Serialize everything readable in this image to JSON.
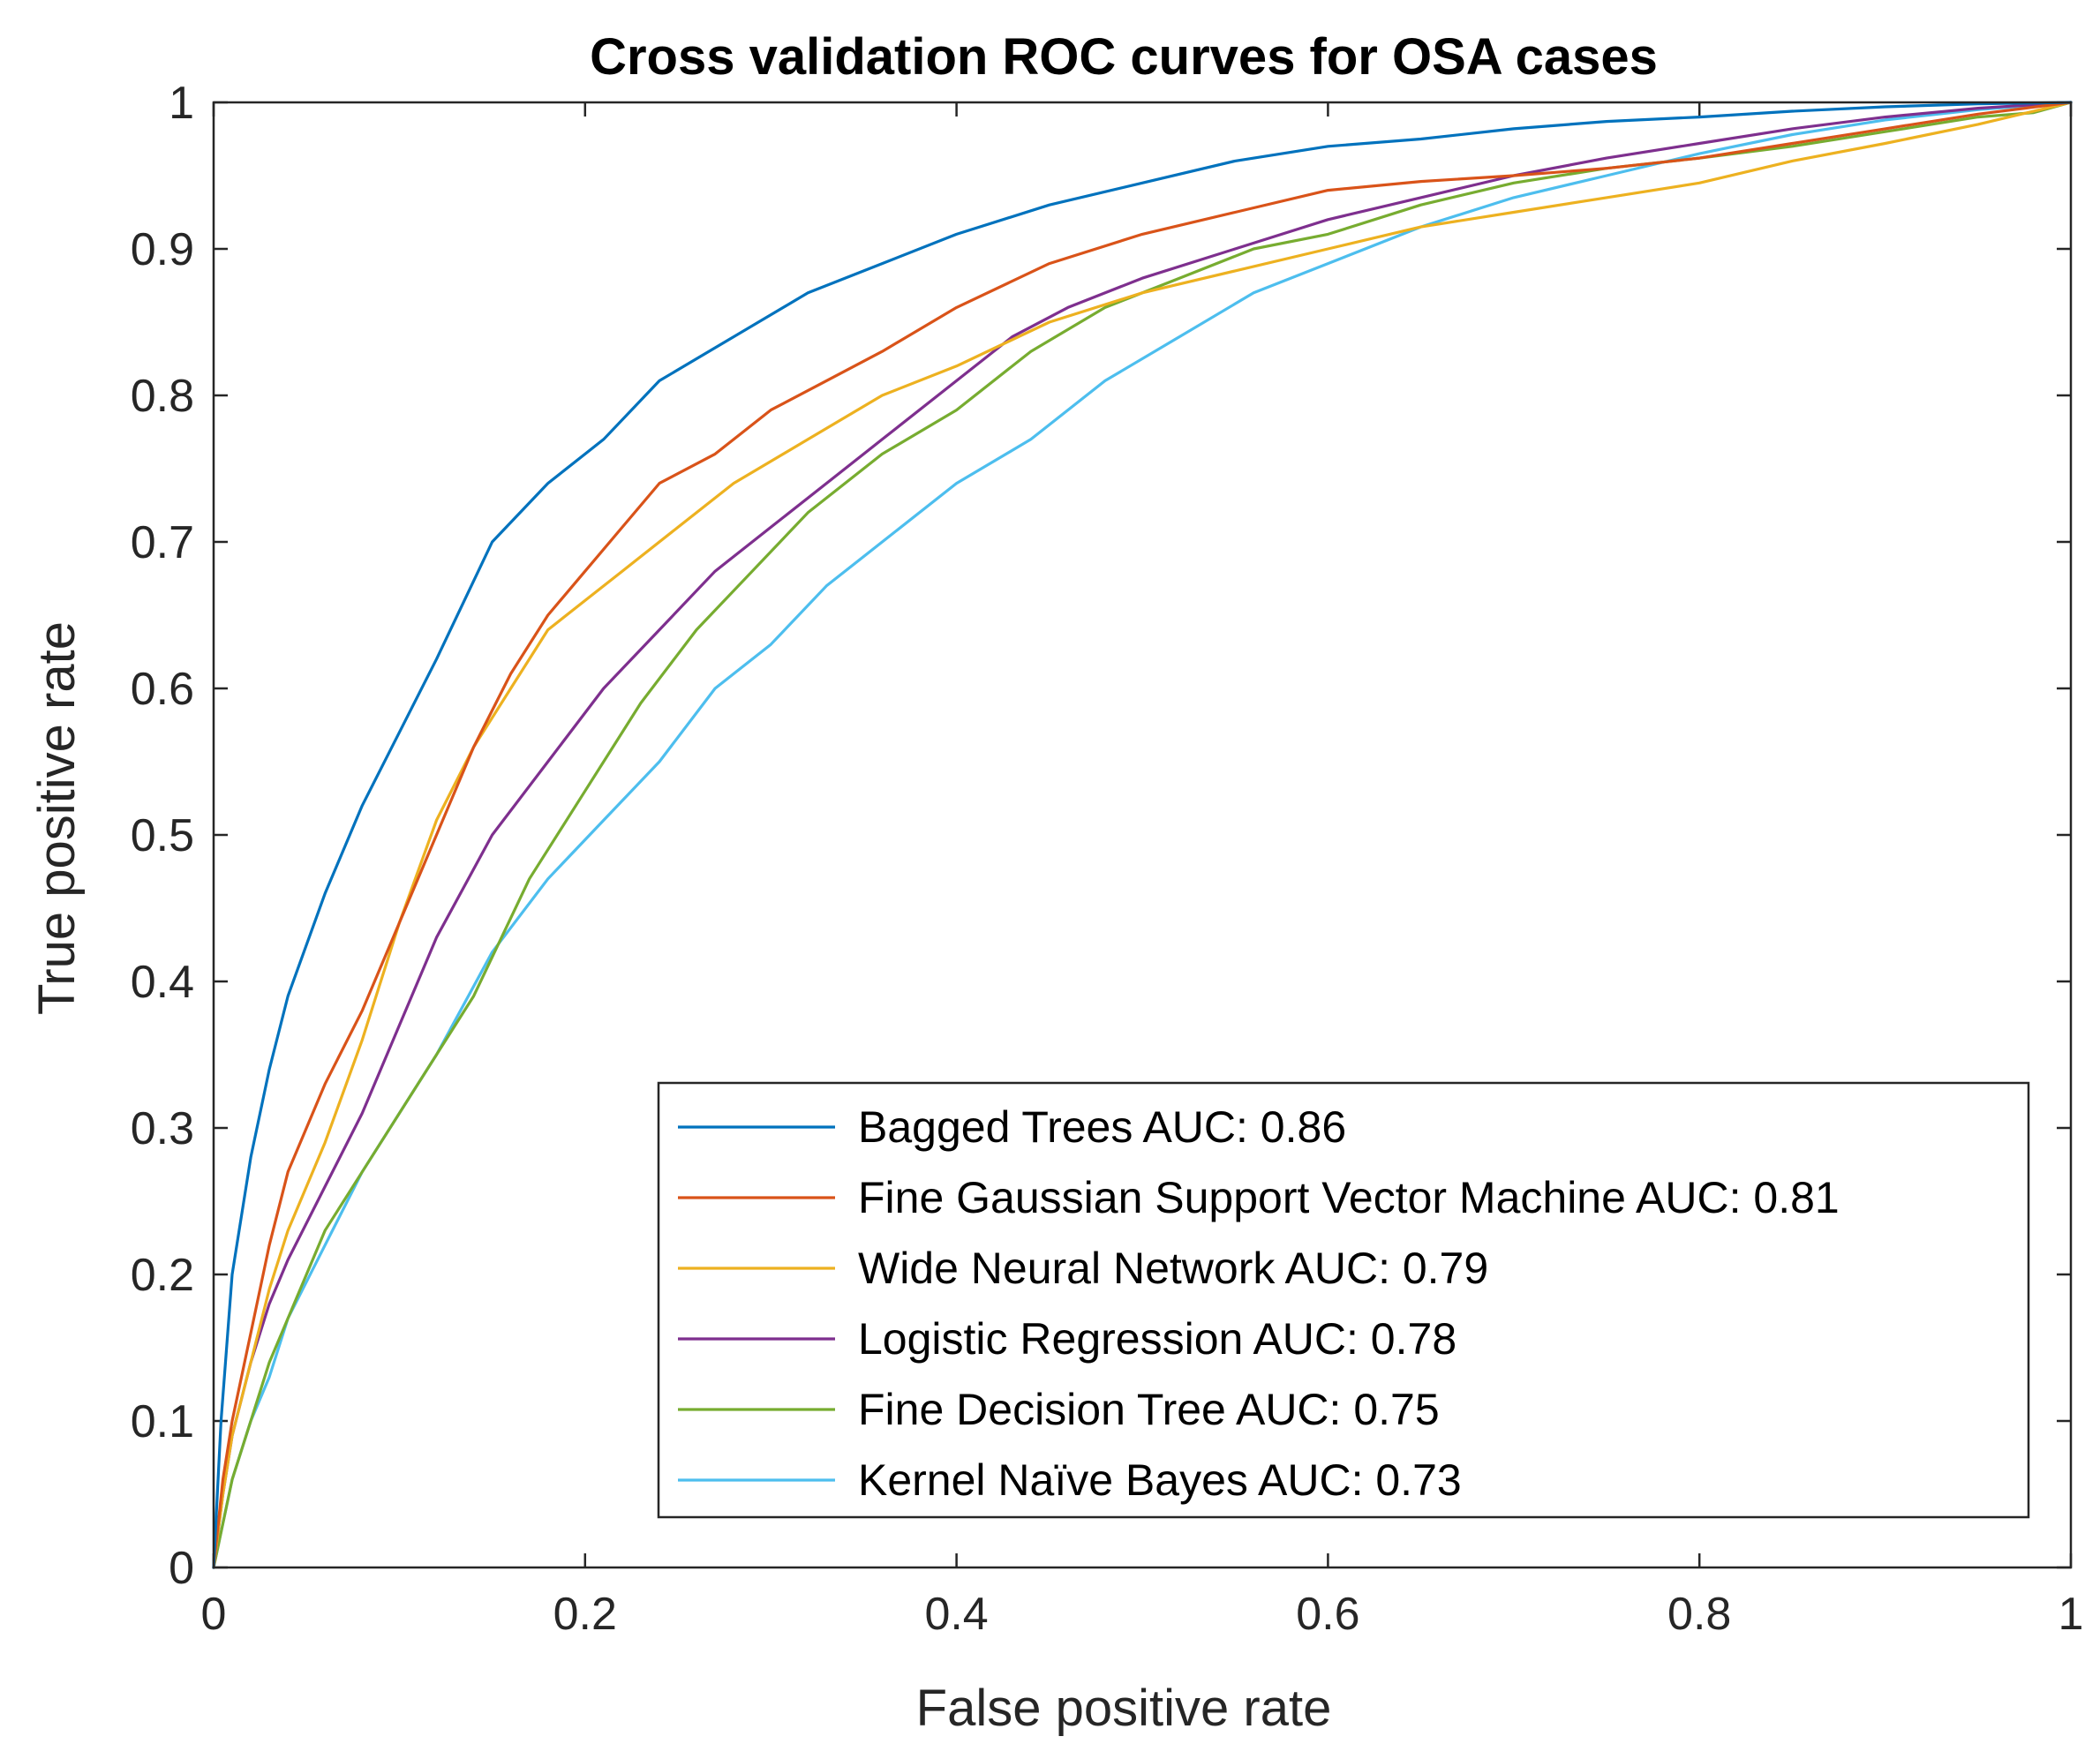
{
  "chart_data": {
    "type": "line",
    "title": "Cross validation ROC curves for OSA cases",
    "xlabel": "False positive rate",
    "ylabel": "True positive rate",
    "xlim": [
      0,
      1
    ],
    "ylim": [
      0,
      1
    ],
    "xticks": [
      "0",
      "0.2",
      "0.4",
      "0.6",
      "0.8",
      "1"
    ],
    "yticks": [
      "0",
      "0.1",
      "0.2",
      "0.3",
      "0.4",
      "0.5",
      "0.6",
      "0.7",
      "0.8",
      "0.9",
      "1"
    ],
    "grid": false,
    "legend_position": "bottom-right",
    "series": [
      {
        "name": "Bagged Trees AUC: 0.86",
        "color": "#0072BD",
        "x": [
          0,
          0.004,
          0.01,
          0.02,
          0.03,
          0.04,
          0.06,
          0.08,
          0.1,
          0.12,
          0.15,
          0.18,
          0.21,
          0.24,
          0.28,
          0.32,
          0.36,
          0.4,
          0.45,
          0.5,
          0.55,
          0.6,
          0.65,
          0.7,
          0.75,
          0.8,
          0.85,
          0.9,
          0.95,
          1
        ],
        "y": [
          0,
          0.1,
          0.2,
          0.28,
          0.34,
          0.39,
          0.46,
          0.52,
          0.57,
          0.62,
          0.7,
          0.74,
          0.77,
          0.81,
          0.84,
          0.87,
          0.89,
          0.91,
          0.93,
          0.945,
          0.96,
          0.97,
          0.975,
          0.982,
          0.987,
          0.99,
          0.994,
          0.997,
          0.999,
          1
        ]
      },
      {
        "name": "Fine Gaussian Support Vector Machine AUC: 0.81",
        "color": "#D95319",
        "x": [
          0,
          0.005,
          0.01,
          0.02,
          0.03,
          0.04,
          0.06,
          0.08,
          0.1,
          0.12,
          0.14,
          0.16,
          0.18,
          0.2,
          0.22,
          0.24,
          0.27,
          0.3,
          0.33,
          0.36,
          0.4,
          0.45,
          0.5,
          0.55,
          0.6,
          0.65,
          0.7,
          0.75,
          0.8,
          0.85,
          0.9,
          0.95,
          1
        ],
        "y": [
          0,
          0.06,
          0.1,
          0.16,
          0.22,
          0.27,
          0.33,
          0.38,
          0.44,
          0.5,
          0.56,
          0.61,
          0.65,
          0.68,
          0.71,
          0.74,
          0.76,
          0.79,
          0.81,
          0.83,
          0.86,
          0.89,
          0.91,
          0.925,
          0.94,
          0.946,
          0.95,
          0.955,
          0.962,
          0.972,
          0.982,
          0.992,
          1
        ]
      },
      {
        "name": "Wide Neural Network AUC: 0.79",
        "color": "#EDB120",
        "x": [
          0,
          0.005,
          0.01,
          0.02,
          0.03,
          0.04,
          0.06,
          0.08,
          0.1,
          0.12,
          0.14,
          0.16,
          0.18,
          0.2,
          0.22,
          0.25,
          0.28,
          0.32,
          0.36,
          0.4,
          0.45,
          0.5,
          0.55,
          0.6,
          0.65,
          0.7,
          0.75,
          0.8,
          0.85,
          0.9,
          0.95,
          1
        ],
        "y": [
          0,
          0.05,
          0.09,
          0.14,
          0.19,
          0.23,
          0.29,
          0.36,
          0.44,
          0.51,
          0.56,
          0.6,
          0.64,
          0.66,
          0.68,
          0.71,
          0.74,
          0.77,
          0.8,
          0.82,
          0.85,
          0.87,
          0.885,
          0.9,
          0.915,
          0.925,
          0.935,
          0.945,
          0.96,
          0.972,
          0.985,
          1
        ]
      },
      {
        "name": "Logistic Regression AUC: 0.78",
        "color": "#7E2F8E",
        "x": [
          0,
          0.005,
          0.01,
          0.02,
          0.03,
          0.04,
          0.06,
          0.08,
          0.1,
          0.12,
          0.15,
          0.18,
          0.21,
          0.24,
          0.27,
          0.3,
          0.33,
          0.36,
          0.4,
          0.43,
          0.46,
          0.5,
          0.55,
          0.6,
          0.65,
          0.7,
          0.75,
          0.8,
          0.85,
          0.9,
          0.95,
          1
        ],
        "y": [
          0,
          0.05,
          0.09,
          0.14,
          0.18,
          0.21,
          0.26,
          0.31,
          0.37,
          0.43,
          0.5,
          0.55,
          0.6,
          0.64,
          0.68,
          0.71,
          0.74,
          0.77,
          0.81,
          0.84,
          0.86,
          0.88,
          0.9,
          0.92,
          0.935,
          0.95,
          0.962,
          0.972,
          0.982,
          0.99,
          0.996,
          1
        ]
      },
      {
        "name": "Fine Decision Tree AUC: 0.75",
        "color": "#77AC30",
        "x": [
          0,
          0.005,
          0.01,
          0.02,
          0.03,
          0.04,
          0.06,
          0.08,
          0.1,
          0.12,
          0.14,
          0.17,
          0.2,
          0.23,
          0.26,
          0.29,
          0.32,
          0.36,
          0.4,
          0.44,
          0.48,
          0.52,
          0.56,
          0.6,
          0.65,
          0.7,
          0.75,
          0.8,
          0.85,
          0.9,
          0.95,
          0.98,
          1
        ],
        "y": [
          0,
          0.03,
          0.06,
          0.1,
          0.14,
          0.17,
          0.23,
          0.27,
          0.31,
          0.35,
          0.39,
          0.47,
          0.53,
          0.59,
          0.64,
          0.68,
          0.72,
          0.76,
          0.79,
          0.83,
          0.86,
          0.88,
          0.9,
          0.91,
          0.93,
          0.945,
          0.955,
          0.962,
          0.97,
          0.98,
          0.99,
          0.993,
          1
        ]
      },
      {
        "name": "Kernel Naïve Bayes AUC: 0.73",
        "color": "#4DBEEE",
        "x": [
          0,
          0.005,
          0.01,
          0.02,
          0.03,
          0.04,
          0.06,
          0.08,
          0.1,
          0.12,
          0.15,
          0.18,
          0.21,
          0.24,
          0.27,
          0.3,
          0.33,
          0.36,
          0.4,
          0.44,
          0.48,
          0.52,
          0.56,
          0.6,
          0.65,
          0.7,
          0.75,
          0.8,
          0.85,
          0.9,
          0.95,
          1
        ],
        "y": [
          0,
          0.03,
          0.06,
          0.1,
          0.13,
          0.17,
          0.22,
          0.27,
          0.31,
          0.35,
          0.42,
          0.47,
          0.51,
          0.55,
          0.6,
          0.63,
          0.67,
          0.7,
          0.74,
          0.77,
          0.81,
          0.84,
          0.87,
          0.89,
          0.915,
          0.935,
          0.95,
          0.965,
          0.978,
          0.988,
          0.995,
          1
        ]
      }
    ]
  }
}
